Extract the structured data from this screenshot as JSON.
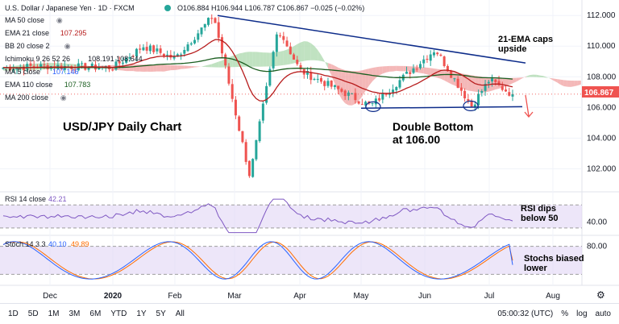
{
  "header": {
    "title": "U.S. Dollar / Japanese Yen · 1D · FXCM",
    "ohlc": "O106.884 H106.944 L106.787 C106.867 −0.025 (−0.02%)"
  },
  "indicators": [
    {
      "label": "MA 50 close",
      "value": "",
      "color": "#787b86"
    },
    {
      "label": "EMA 21 close",
      "value": "107.295",
      "color": "#b71c1c"
    },
    {
      "label": "BB 20 close 2",
      "value": "",
      "color": "#787b86"
    },
    {
      "label": "Ichimoku 9 26 52 26",
      "value": "108.191  108.644",
      "color": "#131722"
    },
    {
      "label": "MA 5 close",
      "value": "107.146",
      "color": "#2962ff"
    },
    {
      "label": "EMA 110 close",
      "value": "107.783",
      "color": "#1b5e20"
    },
    {
      "label": "MA 200 close",
      "value": "",
      "color": "#787b86"
    }
  ],
  "annotations": {
    "chart_title": "USD/JPY Daily Chart",
    "double_bottom": [
      "Double Bottom",
      "at 106.00"
    ],
    "ema_caps": [
      "21-EMA caps",
      "upside"
    ],
    "rsi_note": [
      "RSI dips",
      "below 50"
    ],
    "stoch_note": [
      "Stochs biased",
      "lower"
    ]
  },
  "rsi_legend": {
    "label": "RSI 14 close",
    "value": "42.21"
  },
  "stoch_legend": {
    "label": "Stoch 14 3 3",
    "k": "40.10",
    "d": "49.89"
  },
  "last_price": "106.867",
  "bottom_bar": {
    "timeframes": [
      "1D",
      "5D",
      "1M",
      "3M",
      "6M",
      "YTD",
      "1Y",
      "5Y",
      "All"
    ],
    "clock": "05:00:32 (UTC)",
    "pct": "%",
    "log": "log",
    "auto": "auto"
  },
  "colors": {
    "up": "#26a69a",
    "down": "#ef5350",
    "ema21": "#b71c1c",
    "ema110": "#1b5e20",
    "cloud_green": "#a5d6a7",
    "cloud_red": "#ef9a9a",
    "trend": "#0d2c8a",
    "rsi": "#7e57c2",
    "stoch_k": "#2962ff",
    "stoch_d": "#ff6d00",
    "band": "#e1d5f5"
  },
  "chart_data": [
    {
      "type": "candlestick",
      "title": "U.S. Dollar / Japanese Yen · 1D · FXCM",
      "ylim": [
        100.6,
        112.8
      ],
      "yticks": [
        "112.000",
        "110.000",
        "108.000",
        "106.000",
        "104.000",
        "102.000"
      ],
      "xticks": [
        "Dec",
        "2020",
        "Feb",
        "Mar",
        "Apr",
        "May",
        "Jun",
        "Jul",
        "Aug"
      ],
      "series_close_keypoints": [
        {
          "date": "Nov",
          "close": 108.6
        },
        {
          "date": "Dec",
          "close": 108.7
        },
        {
          "date": "2020",
          "close": 108.6
        },
        {
          "date": "Jan-mid",
          "close": 110.0
        },
        {
          "date": "Feb",
          "close": 109.2
        },
        {
          "date": "Feb-20",
          "close": 112.0
        },
        {
          "date": "Mar-09",
          "close": 101.5
        },
        {
          "date": "Mar-24",
          "close": 111.2
        },
        {
          "date": "Apr",
          "close": 108.4
        },
        {
          "date": "May-06",
          "close": 106.1
        },
        {
          "date": "Jun-05",
          "close": 109.8
        },
        {
          "date": "Jun-22",
          "close": 106.1
        },
        {
          "date": "Jul",
          "close": 107.8
        },
        {
          "date": "Jul-last",
          "close": 106.867
        }
      ],
      "support_line": 106.0,
      "last": 106.867
    },
    {
      "type": "line",
      "title": "RSI 14 close",
      "ylim": [
        20,
        90
      ],
      "yticks": [
        "40.00"
      ],
      "last": 42.21
    },
    {
      "type": "line",
      "title": "Stoch 14 3 3",
      "ylim": [
        0,
        100
      ],
      "yticks": [
        "80.00",
        "20.00"
      ],
      "series": [
        {
          "name": "%K",
          "last": 40.1
        },
        {
          "name": "%D",
          "last": 49.89
        }
      ]
    }
  ]
}
